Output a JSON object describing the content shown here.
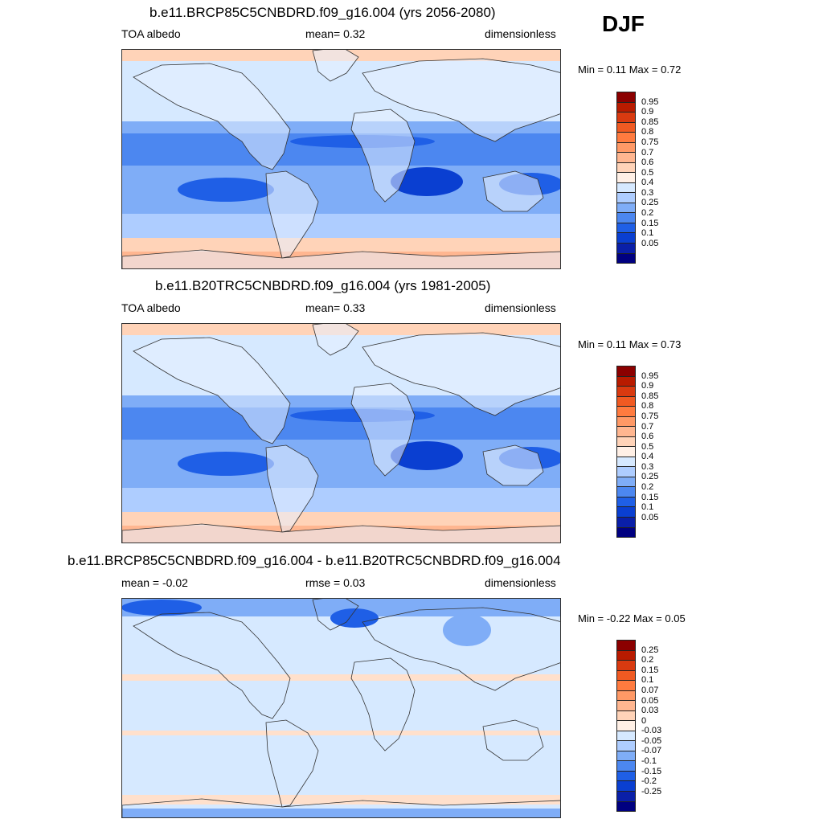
{
  "season": "DJF",
  "panels": [
    {
      "title": "b.e11.BRCP85C5CNBDRD.f09_g16.004 (yrs 2056-2080)",
      "left_label": "TOA albedo",
      "center_label": "mean=   0.32",
      "right_label": "dimensionless",
      "minmax": "Min =   0.11 Max =   0.72",
      "colorbar": "abs"
    },
    {
      "title": "b.e11.B20TRC5CNBDRD.f09_g16.004 (yrs 1981-2005)",
      "left_label": "TOA albedo",
      "center_label": "mean=   0.33",
      "right_label": "dimensionless",
      "minmax": "Min =   0.11 Max =   0.73",
      "colorbar": "abs"
    },
    {
      "title": "b.e11.BRCP85C5CNBDRD.f09_g16.004 - b.e11.B20TRC5CNBDRD.f09_g16.004",
      "left_label": "mean =  -0.02",
      "center_label": "rmse =   0.03",
      "right_label": "dimensionless",
      "minmax": "Min =  -0.22 Max =   0.05",
      "colorbar": "diff"
    }
  ],
  "colorbars": {
    "abs": {
      "labels": [
        "0.95",
        "0.9",
        "0.85",
        "0.8",
        "0.75",
        "0.7",
        "0.6",
        "0.5",
        "0.4",
        "0.3",
        "0.25",
        "0.2",
        "0.15",
        "0.1",
        "0.05"
      ],
      "colors": [
        "#8b0000",
        "#b81b00",
        "#d93a10",
        "#f05a22",
        "#ff7b3f",
        "#ff9966",
        "#ffb690",
        "#ffd3b8",
        "#fff0e6",
        "#d6e9ff",
        "#aecdff",
        "#7fadf7",
        "#4c87f0",
        "#1f5fe6",
        "#0a3fd1",
        "#0a1fa8",
        "#000080"
      ]
    },
    "diff": {
      "labels": [
        "0.25",
        "0.2",
        "0.15",
        "0.1",
        "0.07",
        "0.05",
        "0.03",
        "0",
        "-0.03",
        "-0.05",
        "-0.07",
        "-0.1",
        "-0.15",
        "-0.2",
        "-0.25"
      ],
      "colors": [
        "#8b0000",
        "#b81b00",
        "#d93a10",
        "#f05a22",
        "#ff7b3f",
        "#ff9966",
        "#ffb690",
        "#ffd3b8",
        "#fff0e6",
        "#d6e9ff",
        "#aecdff",
        "#7fadf7",
        "#4c87f0",
        "#1f5fe6",
        "#0a3fd1",
        "#0a1fa8",
        "#000080"
      ]
    }
  },
  "map_colors": {
    "ocean_light": "#d6e9ff",
    "ocean_mid": "#aecdff",
    "ocean_blue": "#7fadf7",
    "ocean_dark": "#4c87f0",
    "ocean_deep": "#1f5fe6",
    "ocean_deepest": "#0a3fd1",
    "polar": "#ffd3b8",
    "polar_strong": "#ffb690",
    "land_light": "#e8f1ff",
    "coast": "#333333",
    "diff_bg": "#d6e9ff",
    "diff_pos": "#ffe0cc",
    "diff_neg": "#7fadf7",
    "diff_neg_strong": "#1f5fe6"
  }
}
